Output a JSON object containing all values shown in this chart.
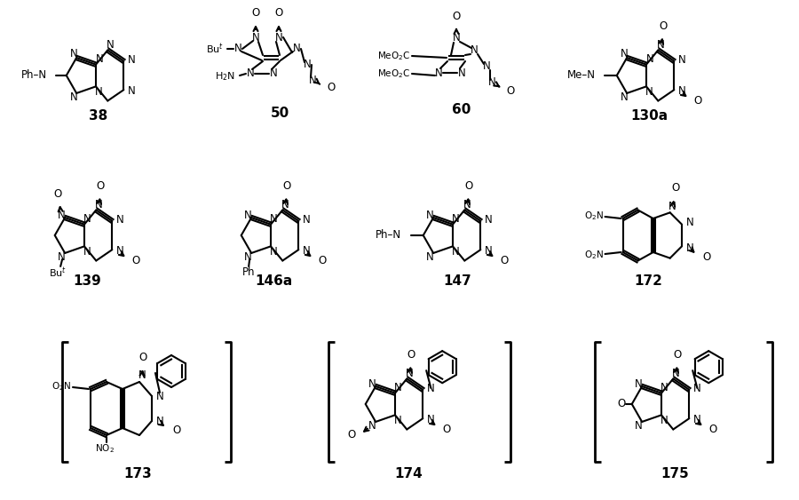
{
  "bg": "#ffffff",
  "compounds": [
    "38",
    "50",
    "60",
    "130a",
    "139",
    "146a",
    "147",
    "172",
    "173",
    "174",
    "175"
  ]
}
